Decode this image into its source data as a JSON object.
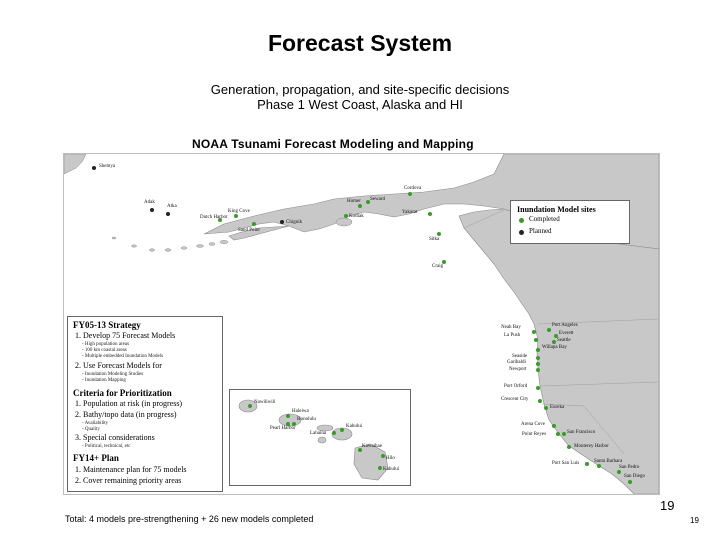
{
  "slide": {
    "title": "Forecast System",
    "subtitle_line1": "Generation, propagation, and site-specific decisions",
    "subtitle_line2": "Phase 1 West Coast, Alaska and HI",
    "footer": "Total: 4 models pre-strengthening + 26 new models completed",
    "page_number_large": "19",
    "page_number_small": "19"
  },
  "map": {
    "title": "NOAA Tsunami Forecast Modeling and Mapping",
    "colors": {
      "land": "#c8c8c8",
      "water": "#ffffff",
      "completed": "#3a9a2a",
      "planned": "#222222"
    },
    "sites": [
      {
        "name": "Shemya",
        "status": "planned"
      },
      {
        "name": "Adak",
        "status": "planned"
      },
      {
        "name": "Atka",
        "status": "planned"
      },
      {
        "name": "Dutch Harbor",
        "status": "completed"
      },
      {
        "name": "King Cove",
        "status": "completed"
      },
      {
        "name": "Sand Point",
        "status": "completed"
      },
      {
        "name": "Chignik",
        "status": "planned"
      },
      {
        "name": "Homer",
        "status": "completed"
      },
      {
        "name": "Kodiak",
        "status": "completed"
      },
      {
        "name": "Seward",
        "status": "completed"
      },
      {
        "name": "Cordova",
        "status": "completed"
      },
      {
        "name": "Yakutat",
        "status": "completed"
      },
      {
        "name": "Sitka",
        "status": "completed"
      },
      {
        "name": "Craig",
        "status": "completed"
      },
      {
        "name": "Neah Bay",
        "status": "completed"
      },
      {
        "name": "La Push",
        "status": "completed"
      },
      {
        "name": "Port Angeles",
        "status": "completed"
      },
      {
        "name": "Everett",
        "status": "completed"
      },
      {
        "name": "Seattle",
        "status": "completed"
      },
      {
        "name": "Willapa Bay",
        "status": "completed"
      },
      {
        "name": "Seaside",
        "status": "completed"
      },
      {
        "name": "Garibaldi",
        "status": "completed"
      },
      {
        "name": "Newport",
        "status": "completed"
      },
      {
        "name": "Port Orford",
        "status": "completed"
      },
      {
        "name": "Crescent City",
        "status": "completed"
      },
      {
        "name": "Eureka",
        "status": "completed"
      },
      {
        "name": "Arena Cove",
        "status": "completed"
      },
      {
        "name": "Point Reyes",
        "status": "completed"
      },
      {
        "name": "San Francisco",
        "status": "completed"
      },
      {
        "name": "Monterey Harbor",
        "status": "completed"
      },
      {
        "name": "Port San Luis",
        "status": "completed"
      },
      {
        "name": "Santa Barbara",
        "status": "completed"
      },
      {
        "name": "San Pedro",
        "status": "completed"
      },
      {
        "name": "San Diego",
        "status": "completed"
      }
    ],
    "hawaii_sites": [
      {
        "name": "Nawiliwili",
        "status": "completed"
      },
      {
        "name": "Haleiwa",
        "status": "completed"
      },
      {
        "name": "Honolulu",
        "status": "completed"
      },
      {
        "name": "Pearl Harbor",
        "status": "completed"
      },
      {
        "name": "Lahaina",
        "status": "completed"
      },
      {
        "name": "Kahului",
        "status": "completed"
      },
      {
        "name": "Kawaihae",
        "status": "completed"
      },
      {
        "name": "Hilo",
        "status": "completed"
      },
      {
        "name": "Kahului",
        "status": "completed"
      }
    ]
  },
  "legend": {
    "title": "Inundation Model sites",
    "completed": "Completed",
    "planned": "Planned"
  },
  "strategy": {
    "h1": "FY05-13 Strategy",
    "i1": "1. Develop 75 Forecast Models",
    "i1a": "- High population areas",
    "i1b": "- 100 km coastal areas",
    "i1c": "- Multiple embedded Inundation Models",
    "i2": "2. Use Forecast Models for",
    "i2a": "- Inundation Modeling Studies",
    "i2b": "- Inundation Mapping",
    "h2": "Criteria for Prioritization",
    "c1": "1. Population at risk (in progress)",
    "c2": "2. Bathy/topo data (in progress)",
    "c2a": "- Availability",
    "c2b": "- Quality",
    "c3": "3. Special considerations",
    "c3a": "- Political, technical, etc",
    "h3": "FY14+ Plan",
    "p1": "1. Maintenance plan for 75 models",
    "p2": "2. Cover remaining priority areas"
  }
}
